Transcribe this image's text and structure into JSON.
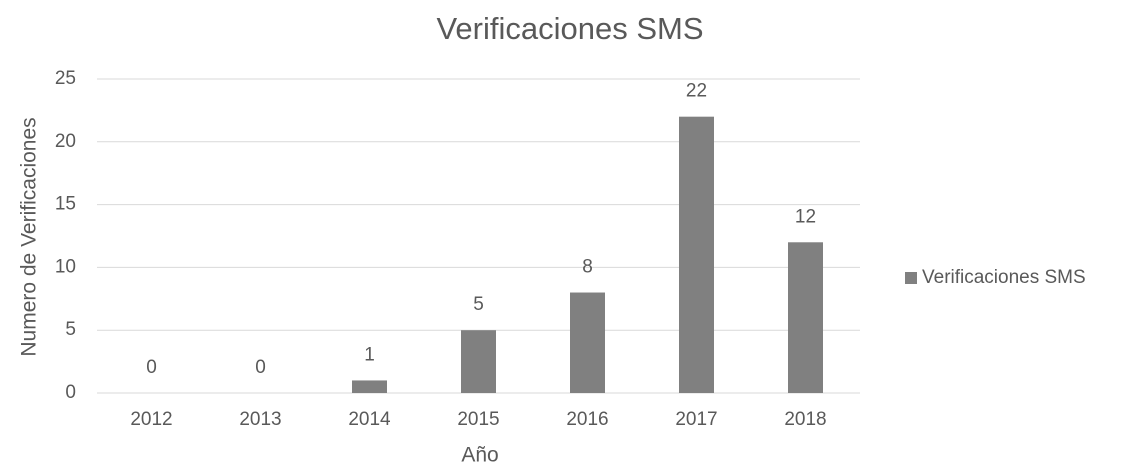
{
  "chart_data": {
    "type": "bar",
    "title": "Verificaciones SMS",
    "x_label": "Año",
    "y_label": "Numero de Verificaciones",
    "categories": [
      "2012",
      "2013",
      "2014",
      "2015",
      "2016",
      "2017",
      "2018"
    ],
    "series": [
      {
        "name": "Verificaciones SMS",
        "color": "#808080",
        "values": [
          0,
          0,
          1,
          5,
          8,
          22,
          12
        ]
      }
    ],
    "ylim": [
      0,
      25
    ],
    "yticks": [
      0,
      5,
      10,
      15,
      20,
      25
    ],
    "grid": true,
    "legend": "right"
  }
}
